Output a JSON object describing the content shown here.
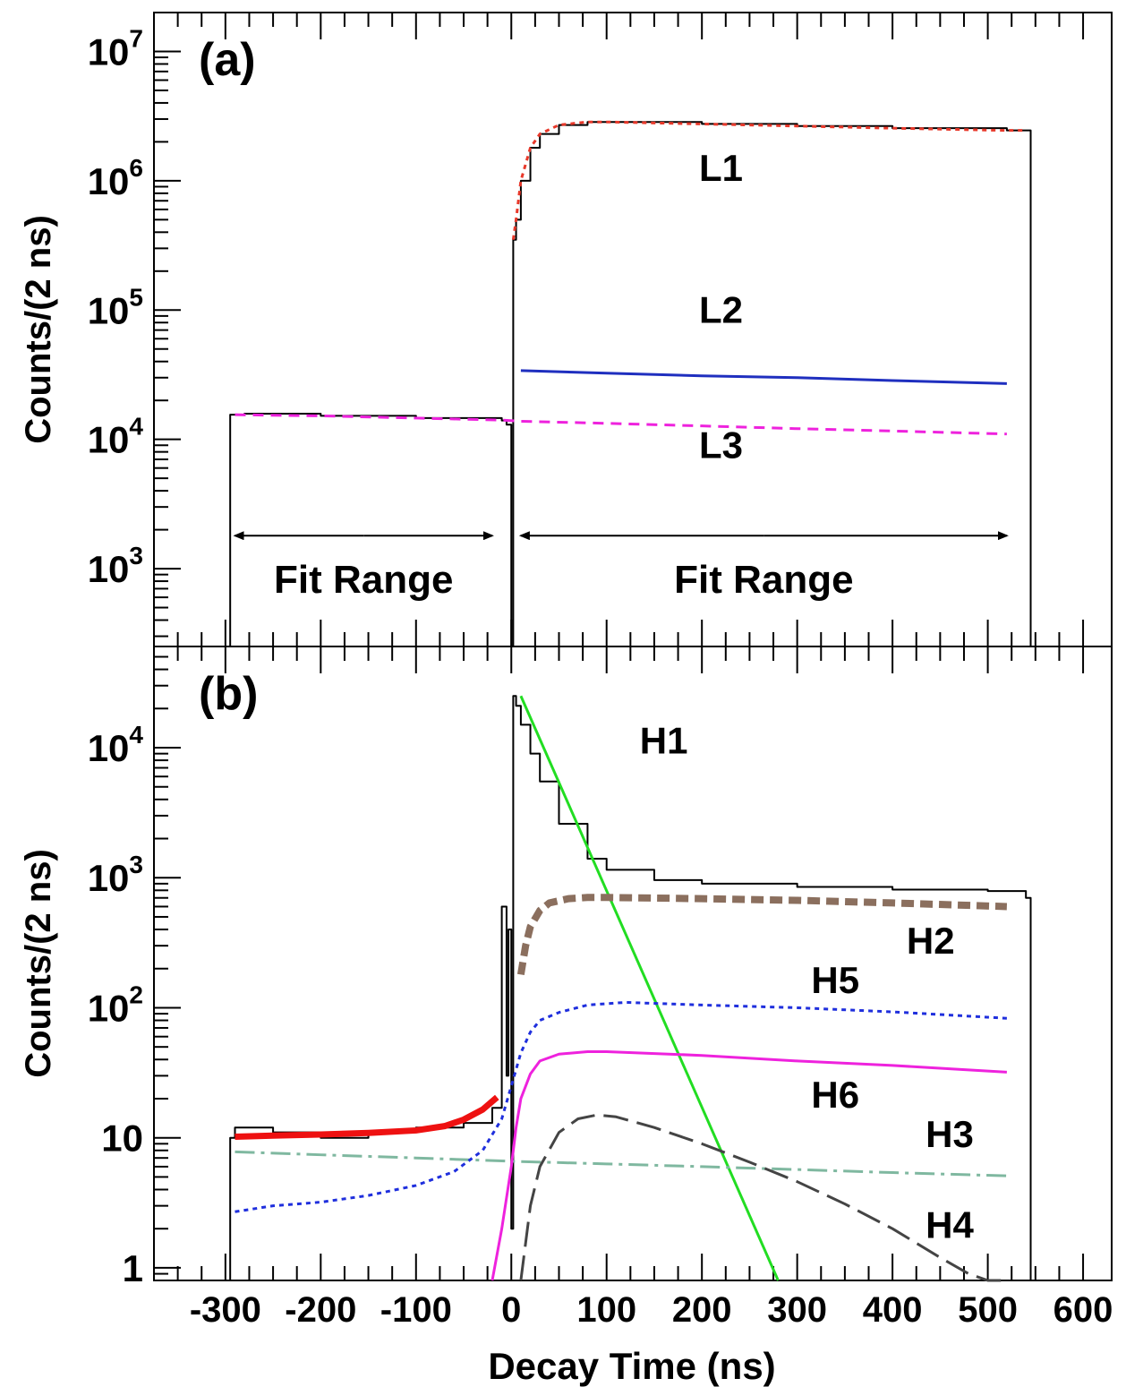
{
  "figure": {
    "x_axis_label": "Decay Time (ns)",
    "x_ticks": [
      "-300",
      "-200",
      "-100",
      "0",
      "100",
      "200",
      "300",
      "400",
      "500",
      "600"
    ]
  },
  "chart_data": [
    {
      "type": "line",
      "panel_label": "(a)",
      "ylabel": "Counts/(2 ns)",
      "yscale": "log",
      "xlim": [
        -375,
        630
      ],
      "ylim": [
        250,
        20000000
      ],
      "y_ticks": [
        {
          "value": 1000,
          "base": "10",
          "exp": "3"
        },
        {
          "value": 10000,
          "base": "10",
          "exp": "4"
        },
        {
          "value": 100000,
          "base": "10",
          "exp": "5"
        },
        {
          "value": 1000000,
          "base": "10",
          "exp": "6"
        },
        {
          "value": 10000000,
          "base": "10",
          "exp": "7"
        }
      ],
      "grid": false,
      "series": [
        {
          "name": "",
          "style": "histogram",
          "color": "#000000",
          "x": [
            -300,
            -295,
            -280,
            -200,
            -100,
            -10,
            -5,
            0,
            2,
            5,
            10,
            20,
            30,
            50,
            80,
            100,
            200,
            300,
            400,
            520,
            540,
            545
          ],
          "y": [
            250,
            15500,
            15800,
            15200,
            14600,
            14000,
            13000,
            250,
            350000,
            500000,
            1000000,
            1800000,
            2300000,
            2700000,
            2850000,
            2850000,
            2750000,
            2650000,
            2550000,
            2450000,
            2450000,
            250
          ]
        },
        {
          "name": "",
          "style": "dotted",
          "color": "#e8382a",
          "x": [
            2,
            5,
            10,
            20,
            30,
            50,
            80,
            100,
            200,
            300,
            400,
            520,
            540
          ],
          "y": [
            350000,
            500000,
            1000000,
            1800000,
            2300000,
            2700000,
            2850000,
            2850000,
            2750000,
            2650000,
            2550000,
            2450000,
            2450000
          ]
        },
        {
          "name": "L2",
          "style": "solid",
          "color": "#1f2fbf",
          "x": [
            10,
            100,
            200,
            300,
            400,
            520
          ],
          "y": [
            34000,
            32500,
            31000,
            30000,
            28500,
            27000
          ]
        },
        {
          "name": "L3",
          "style": "dashed",
          "color": "#ee22dd",
          "x": [
            -290,
            -200,
            -100,
            -10,
            10,
            100,
            200,
            300,
            400,
            520
          ],
          "y": [
            15500,
            15200,
            14600,
            14100,
            13800,
            13300,
            12700,
            12100,
            11600,
            11000
          ]
        }
      ],
      "annotations": [
        {
          "text": "L1",
          "x": 220,
          "y": 1000000
        },
        {
          "text": "L2",
          "x": 220,
          "y": 80000
        },
        {
          "text": "L3",
          "x": 220,
          "y": 7200
        }
      ],
      "ranges": [
        {
          "label": "Fit Range",
          "x0": -290,
          "x1": -20,
          "y": 1800,
          "label_y": 650
        },
        {
          "label": "Fit Range",
          "x0": 10,
          "x1": 520,
          "y": 1800,
          "label_y": 650
        }
      ]
    },
    {
      "type": "line",
      "panel_label": "(b)",
      "ylabel": "Counts/(2 ns)",
      "yscale": "log",
      "xlim": [
        -375,
        630
      ],
      "ylim": [
        0.8,
        60000
      ],
      "y_ticks": [
        {
          "value": 1,
          "base": "1",
          "exp": ""
        },
        {
          "value": 10,
          "base": "10",
          "exp": ""
        },
        {
          "value": 100,
          "base": "10",
          "exp": "2"
        },
        {
          "value": 1000,
          "base": "10",
          "exp": "3"
        },
        {
          "value": 10000,
          "base": "10",
          "exp": "4"
        }
      ],
      "grid": false,
      "series": [
        {
          "name": "",
          "style": "histogram",
          "color": "#000000",
          "x": [
            -300,
            -295,
            -290,
            -250,
            -200,
            -150,
            -100,
            -50,
            -20,
            -10,
            -5,
            -3,
            0,
            2,
            5,
            10,
            20,
            30,
            50,
            80,
            100,
            150,
            200,
            300,
            400,
            500,
            540,
            545
          ],
          "y": [
            0.8,
            10,
            12,
            11,
            10,
            11,
            12,
            13,
            17,
            600,
            30,
            400,
            2,
            25000,
            21000,
            15000,
            9000,
            5500,
            2600,
            1400,
            1150,
            960,
            900,
            850,
            810,
            790,
            700,
            0.8
          ]
        },
        {
          "name": "",
          "style": "solid-thick",
          "color": "#ee1111",
          "x": [
            -290,
            -250,
            -200,
            -150,
            -100,
            -70,
            -50,
            -30,
            -15
          ],
          "y": [
            10.2,
            10.4,
            10.6,
            10.9,
            11.4,
            12.3,
            13.8,
            16.5,
            20.5
          ]
        },
        {
          "name": "H1",
          "style": "solid",
          "color": "#22dd22",
          "x": [
            10,
            280
          ],
          "y": [
            25000,
            0.8
          ]
        },
        {
          "name": "H2",
          "style": "dashed-thick",
          "color": "#8b6f5e",
          "x": [
            10,
            15,
            20,
            30,
            40,
            60,
            80,
            100,
            200,
            300,
            400,
            520
          ],
          "y": [
            180,
            300,
            420,
            560,
            640,
            690,
            705,
            705,
            690,
            670,
            640,
            600
          ]
        },
        {
          "name": "H3",
          "style": "dash-dot",
          "color": "#7fb8a0",
          "x": [
            -290,
            -200,
            -100,
            0,
            100,
            200,
            300,
            400,
            520
          ],
          "y": [
            7.8,
            7.4,
            7.0,
            6.6,
            6.3,
            6.0,
            5.7,
            5.4,
            5.1
          ]
        },
        {
          "name": "H4",
          "style": "long-dash",
          "color": "#444444",
          "x": [
            10,
            20,
            30,
            50,
            70,
            90,
            110,
            150,
            200,
            250,
            300,
            350,
            400,
            450,
            480,
            500,
            520
          ],
          "y": [
            0.8,
            3,
            6,
            11,
            14,
            15,
            14.5,
            12,
            9,
            6.5,
            4.6,
            3.1,
            2.0,
            1.2,
            0.9,
            0.8,
            0.8
          ]
        },
        {
          "name": "H5",
          "style": "dotted",
          "color": "#1f2fdd",
          "x": [
            -290,
            -250,
            -200,
            -150,
            -100,
            -60,
            -30,
            -10,
            0,
            10,
            20,
            30,
            50,
            80,
            120,
            200,
            300,
            400,
            520
          ],
          "y": [
            2.7,
            3.0,
            3.2,
            3.6,
            4.3,
            5.5,
            8,
            14,
            25,
            45,
            65,
            80,
            92,
            105,
            110,
            105,
            100,
            93,
            83
          ]
        },
        {
          "name": "H6",
          "style": "solid",
          "color": "#ee22dd",
          "x": [
            -20,
            -10,
            0,
            5,
            10,
            20,
            30,
            50,
            80,
            100,
            200,
            300,
            400,
            520
          ],
          "y": [
            0.8,
            2,
            6,
            12,
            20,
            31,
            39,
            44,
            46,
            46,
            43,
            39,
            36,
            32
          ]
        }
      ],
      "annotations": [
        {
          "text": "H1",
          "x": 160,
          "y": 9000
        },
        {
          "text": "H2",
          "x": 440,
          "y": 260
        },
        {
          "text": "H5",
          "x": 340,
          "y": 130
        },
        {
          "text": "H6",
          "x": 340,
          "y": 17
        },
        {
          "text": "H3",
          "x": 460,
          "y": 8.5
        },
        {
          "text": "H4",
          "x": 460,
          "y": 1.7
        }
      ]
    }
  ]
}
